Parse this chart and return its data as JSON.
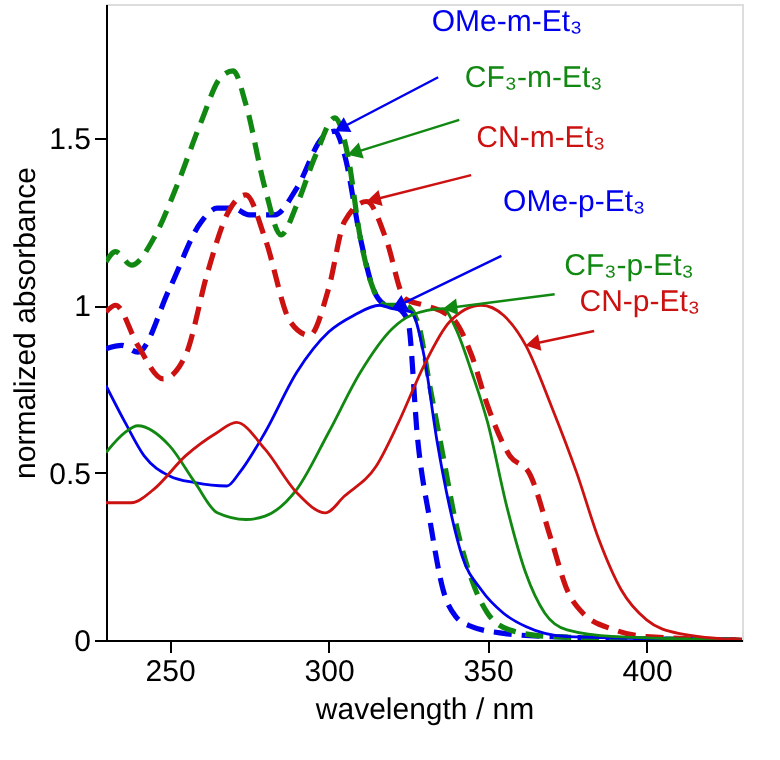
{
  "chart_data": {
    "type": "line",
    "xlabel": "wavelength / nm",
    "ylabel": "normalized absorbance",
    "xlim": [
      230,
      430
    ],
    "ylim": [
      0,
      1.9
    ],
    "xticks": [
      250,
      300,
      350,
      400
    ],
    "yticks": [
      0,
      0.5,
      1,
      1.5
    ],
    "grid": false,
    "series": [
      {
        "color": "#0000ee",
        "line_style": "dashed",
        "x": [
          230,
          235,
          240,
          250,
          260,
          265,
          270,
          275,
          283,
          290,
          298,
          302,
          305,
          310,
          314,
          318,
          322,
          325,
          328,
          332,
          336,
          340,
          345,
          355,
          370,
          430
        ],
        "values": [
          0.87,
          0.88,
          0.86,
          1.05,
          1.25,
          1.29,
          1.29,
          1.27,
          1.27,
          1.35,
          1.5,
          1.52,
          1.45,
          1.2,
          1.05,
          1.0,
          0.99,
          0.95,
          0.6,
          0.35,
          0.15,
          0.07,
          0.04,
          0.02,
          0.01,
          0
        ]
      },
      {
        "color": "#118811",
        "line_style": "dashed",
        "x": [
          230,
          233,
          238,
          245,
          252,
          260,
          266,
          270,
          274,
          280,
          285,
          290,
          296,
          302,
          306,
          310,
          314,
          318,
          324,
          328,
          332,
          336,
          340,
          345,
          350,
          357,
          370,
          430
        ],
        "values": [
          1.13,
          1.16,
          1.12,
          1.2,
          1.35,
          1.55,
          1.68,
          1.7,
          1.6,
          1.35,
          1.21,
          1.3,
          1.45,
          1.56,
          1.45,
          1.2,
          1.05,
          1.0,
          1.0,
          0.95,
          0.75,
          0.55,
          0.35,
          0.18,
          0.08,
          0.03,
          0.01,
          0
        ]
      },
      {
        "color": "#cc1111",
        "line_style": "dashed",
        "x": [
          230,
          233,
          240,
          248,
          255,
          262,
          268,
          274,
          280,
          288,
          294,
          300,
          305,
          312,
          318,
          324,
          330,
          336,
          340,
          345,
          350,
          357,
          363,
          370,
          375,
          380,
          390,
          400,
          430
        ],
        "values": [
          0.98,
          1.0,
          0.88,
          0.78,
          0.85,
          1.1,
          1.27,
          1.33,
          1.2,
          0.95,
          0.91,
          1.05,
          1.25,
          1.31,
          1.2,
          1.02,
          1.0,
          0.98,
          0.95,
          0.85,
          0.7,
          0.55,
          0.5,
          0.3,
          0.15,
          0.08,
          0.03,
          0.01,
          0
        ]
      },
      {
        "color": "#0000ee",
        "line_style": "solid",
        "x": [
          230,
          236,
          242,
          250,
          258,
          268,
          272,
          280,
          290,
          300,
          308,
          316,
          320,
          326,
          330,
          334,
          338,
          342,
          348,
          355,
          362,
          375,
          430
        ],
        "values": [
          0.76,
          0.65,
          0.55,
          0.49,
          0.47,
          0.46,
          0.5,
          0.62,
          0.8,
          0.92,
          0.97,
          1.0,
          0.99,
          0.98,
          0.85,
          0.6,
          0.4,
          0.25,
          0.15,
          0.08,
          0.04,
          0.01,
          0
        ]
      },
      {
        "color": "#118811",
        "line_style": "solid",
        "x": [
          230,
          236,
          240,
          250,
          258,
          265,
          274,
          280,
          290,
          300,
          310,
          320,
          326,
          336,
          340,
          345,
          350,
          356,
          362,
          368,
          375,
          390,
          430
        ],
        "values": [
          0.56,
          0.62,
          0.64,
          0.58,
          0.47,
          0.38,
          0.36,
          0.37,
          0.45,
          0.62,
          0.8,
          0.93,
          0.97,
          0.99,
          0.93,
          0.8,
          0.65,
          0.4,
          0.2,
          0.08,
          0.03,
          0.01,
          0
        ]
      },
      {
        "color": "#cc1111",
        "line_style": "solid",
        "x": [
          230,
          238,
          245,
          255,
          265,
          271,
          280,
          290,
          299,
          305,
          315,
          322,
          330,
          338,
          348,
          355,
          362,
          370,
          378,
          385,
          392,
          400,
          410,
          430
        ],
        "values": [
          0.41,
          0.41,
          0.45,
          0.55,
          0.62,
          0.65,
          0.57,
          0.44,
          0.38,
          0.43,
          0.52,
          0.65,
          0.82,
          0.95,
          1.0,
          0.97,
          0.88,
          0.7,
          0.5,
          0.3,
          0.15,
          0.06,
          0.02,
          0
        ]
      }
    ],
    "annotations": [
      {
        "text": "OMe-m-Et₃",
        "x": 302,
        "y": 1.52
      },
      {
        "text": "CF₃-m-Et₃",
        "x": 306,
        "y": 1.45
      },
      {
        "text": "CN-m-Et₃",
        "x": 312,
        "y": 1.31
      },
      {
        "text": "OMe-p-Et₃",
        "x": 320,
        "y": 0.99
      },
      {
        "text": "CF₃-p-Et₃",
        "x": 336,
        "y": 0.99
      },
      {
        "text": "CN-p-Et₃",
        "x": 362,
        "y": 0.88
      }
    ]
  }
}
